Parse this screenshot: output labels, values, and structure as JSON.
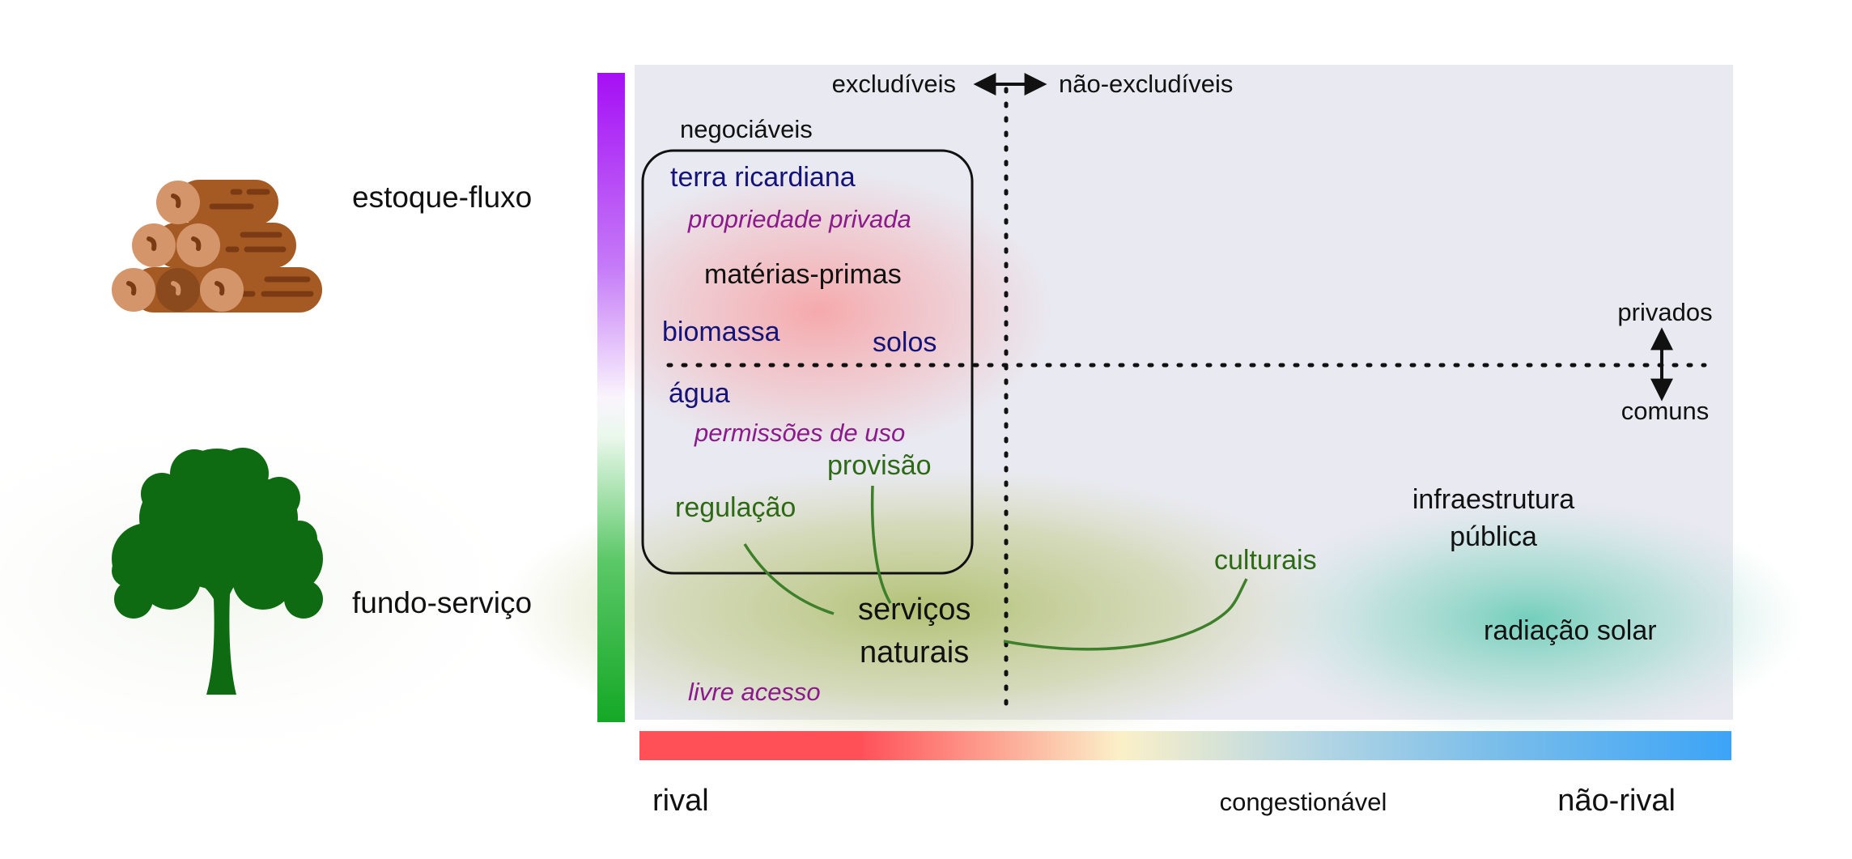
{
  "colors": {
    "panel": "#E9E9F1",
    "blue_text": "#141478",
    "purple_text": "#8B1A8B",
    "green_text": "#2E6A16",
    "tree_green": "#0F6B12",
    "wood_dark": "#8A4A1E",
    "wood_light": "#D4956A",
    "gauge_top": "#A50FF5",
    "gauge_bottom": "#14A826",
    "bar_left": "#FF4F57",
    "bar_mid": "#FBF0C8",
    "bar_right": "#3CA4F7"
  },
  "icons": {
    "logs": "stacked-logs-icon",
    "tree": "tree-icon"
  },
  "side_labels": {
    "stock_flow": "estoque-fluxo",
    "fund_service": "fundo-serviço"
  },
  "axes": {
    "excludable": "excludíveis",
    "non_excludable": "não-excludíveis",
    "private": "privados",
    "common": "comuns",
    "rival": "rival",
    "congestible": "congestionável",
    "non_rival": "não-rival"
  },
  "box": {
    "label": "negociáveis"
  },
  "items": {
    "ricardian_land": "terra ricardiana",
    "private_property": "propriedade privada",
    "raw_materials": "matérias-primas",
    "biomass": "biomassa",
    "soils": "solos",
    "water": "água",
    "use_permits": "permissões de uso",
    "provision": "provisão",
    "regulation": "regulação",
    "natural_services_1": "serviços",
    "natural_services_2": "naturais",
    "cultural": "culturais",
    "public_infra_1": "infraestrutura",
    "public_infra_2": "pública",
    "solar_radiation": "radiação solar",
    "open_access": "livre acesso"
  }
}
